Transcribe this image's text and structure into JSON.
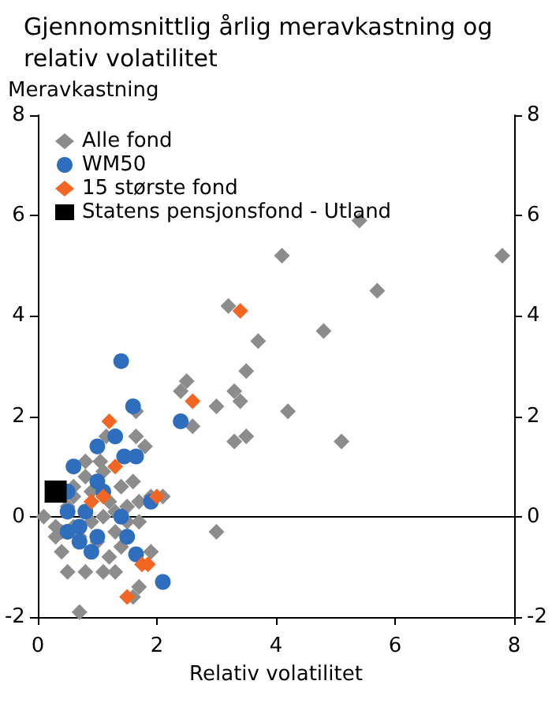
{
  "chart_data": {
    "type": "scatter",
    "title": "Gjennomsnittlig årlig meravkastning og relativ volatilitet",
    "xlabel": "Relativ volatilitet",
    "ylabel": "Meravkastning",
    "xlim": [
      0,
      8
    ],
    "xticks": [
      0,
      2,
      4,
      6,
      8
    ],
    "ylim": [
      -2,
      8
    ],
    "yticks": [
      -2,
      0,
      2,
      4,
      6,
      8
    ],
    "y2lim": [
      -2,
      8
    ],
    "y2ticks": [
      -2,
      0,
      2,
      4,
      6,
      8
    ],
    "legend": "top left",
    "grid": false,
    "ref_lines": [
      {
        "axis": "y",
        "value": 0,
        "color": "#000000"
      }
    ],
    "series": [
      {
        "name": "Alle fond",
        "color": "#8c8c8c",
        "marker": "diamond",
        "x": [
          4.1,
          5.4,
          7.8,
          5.7,
          4.8,
          4.2,
          5.1,
          3.2,
          3.7,
          3.5,
          3.3,
          3.4,
          2.5,
          2.4,
          2.6,
          3,
          3.3,
          3.5,
          3,
          1.65,
          1.15,
          1.65,
          1.8,
          0.8,
          1.05,
          1.6,
          2.1,
          0.1,
          0.3,
          0.6,
          1.7,
          1.6,
          1.9,
          0.5,
          0.8,
          1.1,
          1.3,
          1.2,
          1.4,
          0.4,
          1.7,
          1.4,
          0.7,
          0.5,
          0.9,
          1.2,
          1.5,
          0.6,
          0.9,
          1.1,
          1.3,
          0.4,
          0.7,
          1,
          1.3,
          1.5,
          0.8,
          0.6,
          1.1,
          0.3,
          1.7,
          1.9
        ],
        "values": [
          5.2,
          5.9,
          5.2,
          4.5,
          3.7,
          2.1,
          1.5,
          4.2,
          3.5,
          2.9,
          2.5,
          2.3,
          2.7,
          2.5,
          1.8,
          2.2,
          1.5,
          1.6,
          -0.3,
          2.1,
          1.6,
          1.6,
          1.4,
          1.1,
          1.1,
          0.7,
          0.4,
          0,
          -0.4,
          0.4,
          -1.4,
          -1.6,
          -0.7,
          -1.1,
          -1.1,
          -1.1,
          -1.1,
          -0.8,
          -0.6,
          -0.7,
          0.3,
          0.6,
          -1.9,
          0.2,
          0.5,
          0.3,
          0.2,
          -0.2,
          -0.1,
          0,
          0.1,
          -0.3,
          -0.4,
          -0.5,
          -0.3,
          -0.1,
          0.8,
          0.6,
          0.9,
          -0.2,
          -0.1,
          0.4
        ]
      },
      {
        "name": "WM50",
        "color": "#2f6ebd",
        "marker": "circle",
        "x": [
          1.4,
          1.6,
          2.4,
          1.3,
          1,
          1.45,
          1.65,
          0.6,
          1,
          1.1,
          0.5,
          1.9,
          0.5,
          0.8,
          1.4,
          0.5,
          0.7,
          1,
          1.5,
          0.7,
          0.9,
          1.65,
          2.1
        ],
        "values": [
          3.1,
          2.2,
          1.9,
          1.6,
          1.4,
          1.2,
          1.2,
          1,
          0.7,
          0.5,
          0.5,
          0.3,
          0.1,
          0.1,
          0,
          -0.3,
          -0.2,
          -0.4,
          -0.4,
          -0.5,
          -0.7,
          -0.75,
          -1.3
        ]
      },
      {
        "name": "15 største fond",
        "color": "#f26522",
        "marker": "diamond",
        "x": [
          3.4,
          2.6,
          1.2,
          1.3,
          0.9,
          1.1,
          2,
          1.75,
          1.85,
          1.5
        ],
        "values": [
          4.1,
          2.3,
          1.9,
          1,
          0.3,
          0.4,
          0.4,
          -0.95,
          -0.95,
          -1.6
        ]
      },
      {
        "name": "Statens pensjonsfond - Utland",
        "color": "#000000",
        "marker": "square",
        "x": [
          0.3
        ],
        "values": [
          0.5
        ]
      }
    ]
  }
}
